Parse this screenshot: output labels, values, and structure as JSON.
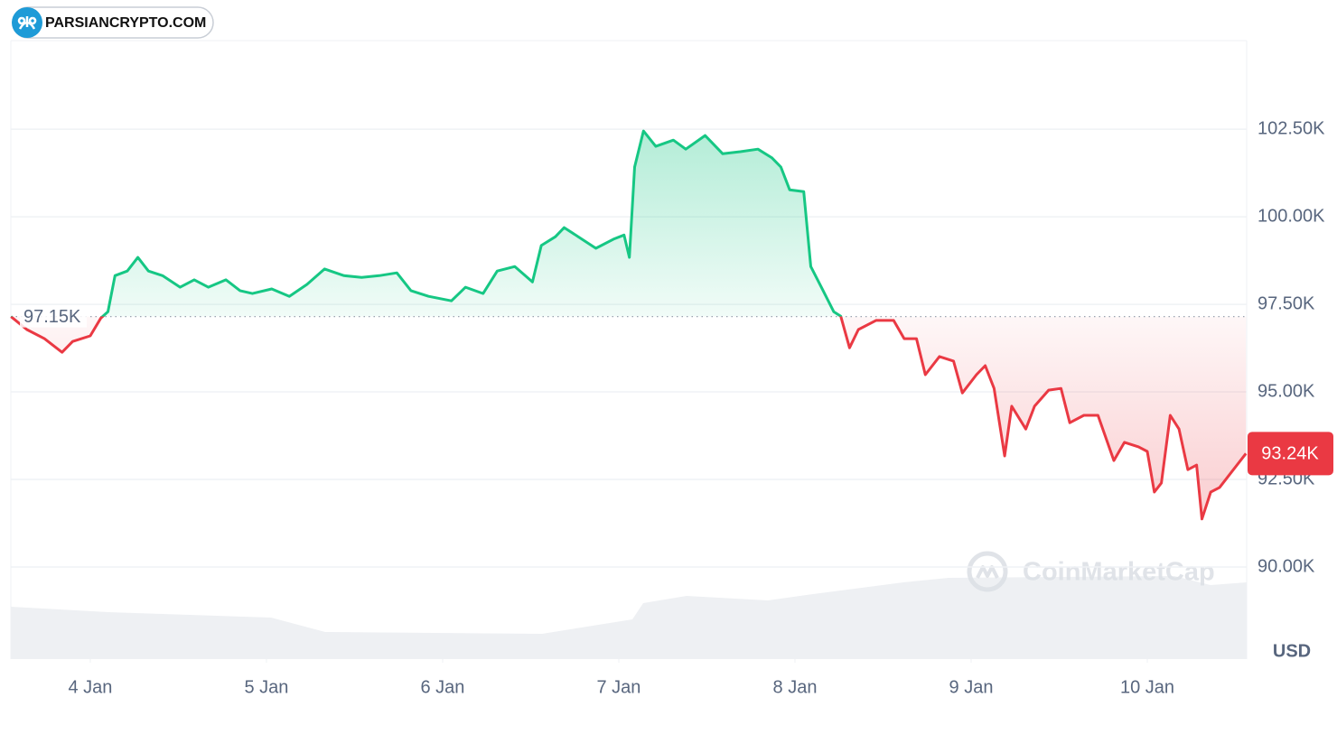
{
  "chart_data": {
    "type": "line",
    "brand": "PARSIANCRYPTO.COM",
    "watermark": "CoinMarketCap",
    "currency": "USD",
    "up_color": "#16c784",
    "down_color": "#ea3943",
    "reference": {
      "value": 97150,
      "label": "97.15K"
    },
    "last_price": {
      "value": 93240,
      "label": "93.24K"
    },
    "grid": true,
    "xlim": [
      3.549,
      10.564
    ],
    "xticks": [
      {
        "value": 4,
        "label": "4 Jan"
      },
      {
        "value": 5,
        "label": "5 Jan"
      },
      {
        "value": 6,
        "label": "6 Jan"
      },
      {
        "value": 7,
        "label": "7 Jan"
      },
      {
        "value": 8,
        "label": "8 Jan"
      },
      {
        "value": 9,
        "label": "9 Jan"
      },
      {
        "value": 10,
        "label": "10 Jan"
      }
    ],
    "ylim": [
      87370,
      105030
    ],
    "yticks": [
      {
        "value": 90000,
        "label": "90.00K"
      },
      {
        "value": 92500,
        "label": "92.50K"
      },
      {
        "value": 95000,
        "label": "95.00K"
      },
      {
        "value": 97500,
        "label": "97.50K"
      },
      {
        "value": 100000,
        "label": "100.00K"
      },
      {
        "value": 102500,
        "label": "102.50K"
      }
    ],
    "x": [
      3.55,
      3.64,
      3.74,
      3.84,
      3.9,
      4.0,
      4.06,
      4.1,
      4.14,
      4.21,
      4.27,
      4.33,
      4.41,
      4.51,
      4.59,
      4.67,
      4.77,
      4.85,
      4.92,
      5.03,
      5.13,
      5.23,
      5.33,
      5.44,
      5.54,
      5.64,
      5.74,
      5.82,
      5.92,
      6.05,
      6.13,
      6.23,
      6.31,
      6.41,
      6.51,
      6.56,
      6.64,
      6.69,
      6.77,
      6.87,
      6.97,
      7.03,
      7.06,
      7.09,
      7.14,
      7.21,
      7.31,
      7.38,
      7.49,
      7.59,
      7.69,
      7.79,
      7.87,
      7.92,
      7.97,
      8.05,
      8.09,
      8.15,
      8.22,
      8.26,
      8.31,
      8.36,
      8.46,
      8.56,
      8.62,
      8.69,
      8.74,
      8.82,
      8.9,
      8.95,
      9.03,
      9.08,
      9.13,
      9.19,
      9.23,
      9.31,
      9.36,
      9.44,
      9.51,
      9.56,
      9.64,
      9.72,
      9.81,
      9.87,
      9.95,
      10.0,
      10.04,
      10.08,
      10.13,
      10.18,
      10.23,
      10.28,
      10.31,
      10.36,
      10.41,
      10.47,
      10.56
    ],
    "values": [
      97150,
      96780,
      96520,
      96130,
      96440,
      96600,
      97110,
      97290,
      98320,
      98450,
      98840,
      98450,
      98320,
      97990,
      98200,
      97990,
      98200,
      97890,
      97810,
      97940,
      97730,
      98070,
      98510,
      98320,
      98270,
      98320,
      98400,
      97890,
      97730,
      97600,
      97990,
      97810,
      98450,
      98580,
      98140,
      99180,
      99430,
      99690,
      99430,
      99100,
      99360,
      99480,
      98840,
      101420,
      102450,
      102010,
      102190,
      101930,
      102320,
      101800,
      101860,
      101930,
      101680,
      101420,
      100770,
      100720,
      98580,
      97990,
      97290,
      97160,
      96260,
      96780,
      97040,
      97040,
      96520,
      96520,
      95490,
      96010,
      95880,
      94970,
      95490,
      95750,
      95100,
      93170,
      94590,
      93940,
      94590,
      95050,
      95100,
      94120,
      94330,
      94330,
      93040,
      93560,
      93430,
      93300,
      92140,
      92400,
      94330,
      93940,
      92780,
      92910,
      91370,
      92140,
      92270,
      92660,
      93240
    ]
  }
}
